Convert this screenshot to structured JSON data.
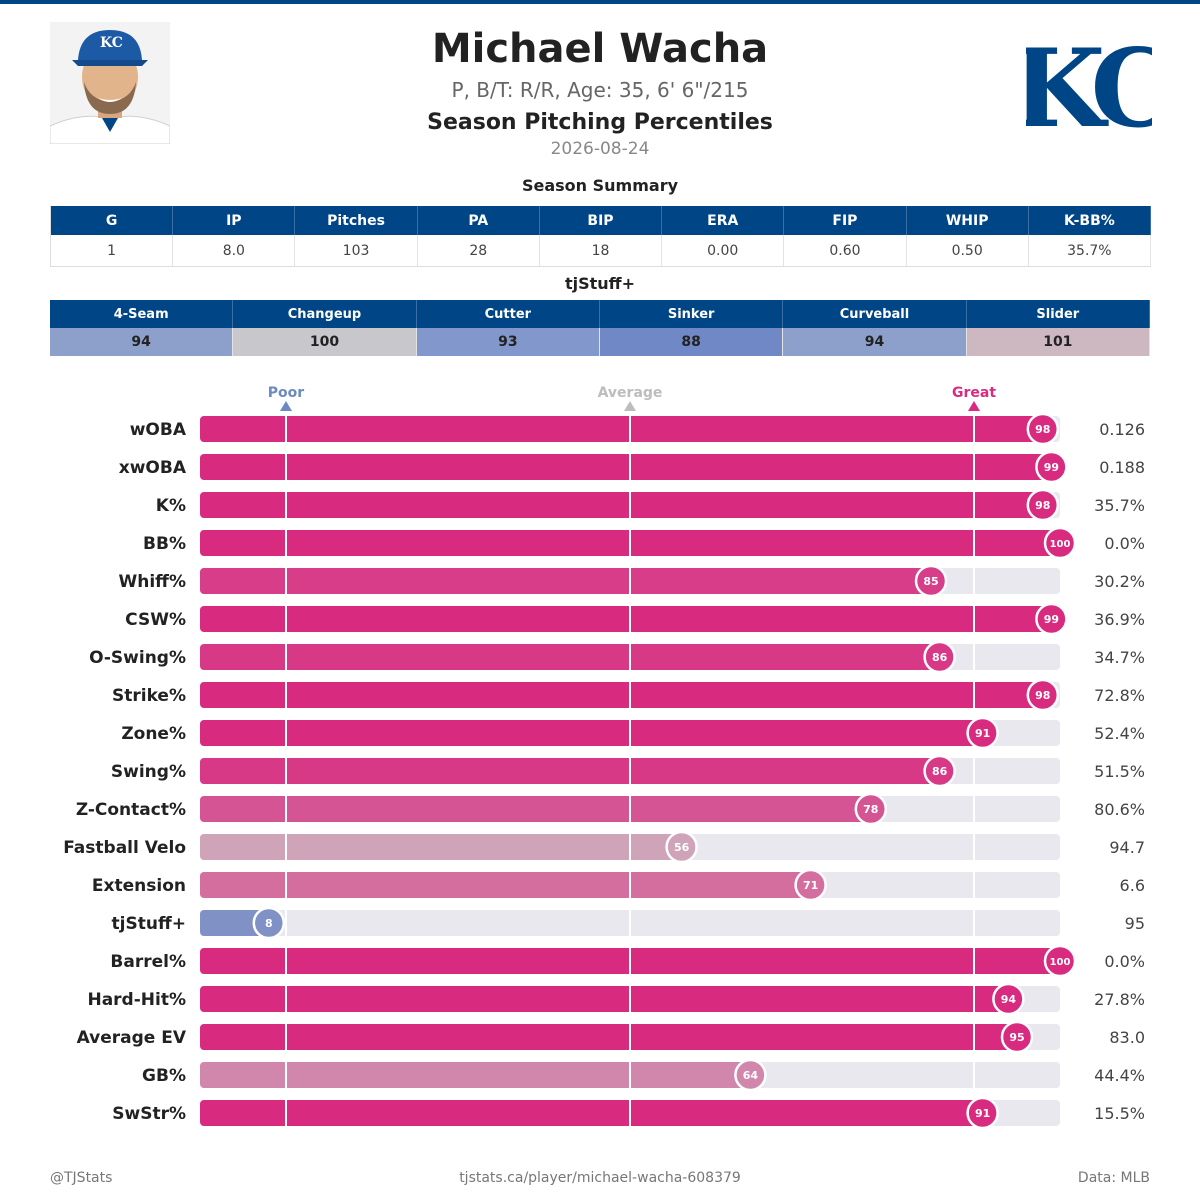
{
  "header": {
    "name": "Michael Wacha",
    "bio": "P, B/T: R/R, Age: 35, 6' 6\"/215",
    "subtitle": "Season Pitching Percentiles",
    "date": "2026-08-24",
    "team_logo_text": "KC"
  },
  "summary": {
    "title": "Season Summary",
    "columns": [
      "G",
      "IP",
      "Pitches",
      "PA",
      "BIP",
      "ERA",
      "FIP",
      "WHIP",
      "K-BB%"
    ],
    "values": [
      "1",
      "8.0",
      "103",
      "28",
      "18",
      "0.00",
      "0.60",
      "0.50",
      "35.7%"
    ]
  },
  "tjstuff": {
    "title": "tjStuff+",
    "pitches": [
      {
        "name": "4-Seam",
        "value": "94",
        "color": "#8da0cb"
      },
      {
        "name": "Changeup",
        "value": "100",
        "color": "#c8c8cc"
      },
      {
        "name": "Cutter",
        "value": "93",
        "color": "#8297cc"
      },
      {
        "name": "Sinker",
        "value": "88",
        "color": "#7089c6"
      },
      {
        "name": "Curveball",
        "value": "94",
        "color": "#8da0cb"
      },
      {
        "name": "Slider",
        "value": "101",
        "color": "#cdb8c2"
      }
    ]
  },
  "chart_data": {
    "type": "bar",
    "orientation": "horizontal",
    "xlim": [
      0,
      100
    ],
    "markers": [
      {
        "label": "Poor",
        "value": 10,
        "color": "#6a8ac2"
      },
      {
        "label": "Average",
        "value": 50,
        "color": "#bdbdbd"
      },
      {
        "label": "Great",
        "value": 90,
        "color": "#d82b80"
      }
    ],
    "metrics": [
      {
        "name": "wOBA",
        "percentile": 98,
        "value": "0.126"
      },
      {
        "name": "xwOBA",
        "percentile": 99,
        "value": "0.188"
      },
      {
        "name": "K%",
        "percentile": 98,
        "value": "35.7%"
      },
      {
        "name": "BB%",
        "percentile": 100,
        "value": "0.0%"
      },
      {
        "name": "Whiff%",
        "percentile": 85,
        "value": "30.2%"
      },
      {
        "name": "CSW%",
        "percentile": 99,
        "value": "36.9%"
      },
      {
        "name": "O-Swing%",
        "percentile": 86,
        "value": "34.7%"
      },
      {
        "name": "Strike%",
        "percentile": 98,
        "value": "72.8%"
      },
      {
        "name": "Zone%",
        "percentile": 91,
        "value": "52.4%"
      },
      {
        "name": "Swing%",
        "percentile": 86,
        "value": "51.5%"
      },
      {
        "name": "Z-Contact%",
        "percentile": 78,
        "value": "80.6%"
      },
      {
        "name": "Fastball Velo",
        "percentile": 56,
        "value": "94.7"
      },
      {
        "name": "Extension",
        "percentile": 71,
        "value": "6.6"
      },
      {
        "name": "tjStuff+",
        "percentile": 8,
        "value": "95"
      },
      {
        "name": "Barrel%",
        "percentile": 100,
        "value": "0.0%"
      },
      {
        "name": "Hard-Hit%",
        "percentile": 94,
        "value": "27.8%"
      },
      {
        "name": "Average EV",
        "percentile": 95,
        "value": "83.0"
      },
      {
        "name": "GB%",
        "percentile": 64,
        "value": "44.4%"
      },
      {
        "name": "SwStr%",
        "percentile": 91,
        "value": "15.5%"
      }
    ]
  },
  "footer": {
    "left": "@TJStats",
    "center": "tjstats.ca/player/michael-wacha-608379",
    "right": "Data: MLB"
  }
}
